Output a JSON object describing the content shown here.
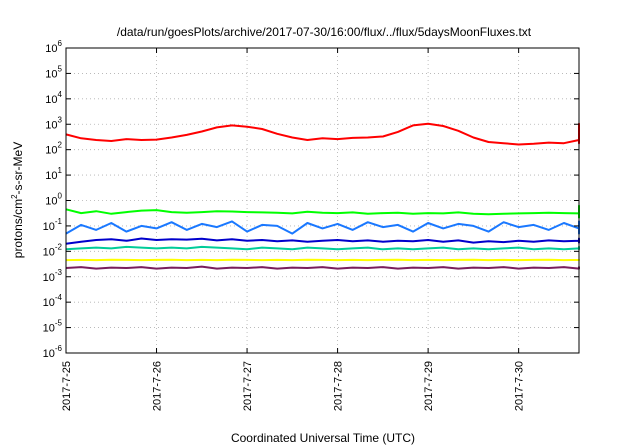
{
  "chart_data": {
    "type": "line",
    "title": "/data/run/goesPlots/archive/2017-07-30/16:00/flux/../flux/5daysMoonFluxes.txt",
    "xlabel": "Coordinated Universal Time (UTC)",
    "ylabel": {
      "base": "protons/cm",
      "superscript": "2",
      "rest": "-s-sr-MeV"
    },
    "y_scale": "log",
    "ylim": [
      1e-06,
      1000000.0
    ],
    "y_ticks": [
      {
        "exp": -6,
        "label_base": "10",
        "label_exp": "-6"
      },
      {
        "exp": -5,
        "label_base": "10",
        "label_exp": "-5"
      },
      {
        "exp": -4,
        "label_base": "10",
        "label_exp": "-4"
      },
      {
        "exp": -3,
        "label_base": "10",
        "label_exp": "-3"
      },
      {
        "exp": -2,
        "label_base": "10",
        "label_exp": "-2"
      },
      {
        "exp": -1,
        "label_base": "10",
        "label_exp": "-1"
      },
      {
        "exp": 0,
        "label_base": "10",
        "label_exp": "0"
      },
      {
        "exp": 1,
        "label_base": "10",
        "label_exp": "1"
      },
      {
        "exp": 2,
        "label_base": "10",
        "label_exp": "2"
      },
      {
        "exp": 3,
        "label_base": "10",
        "label_exp": "3"
      },
      {
        "exp": 4,
        "label_base": "10",
        "label_exp": "4"
      },
      {
        "exp": 5,
        "label_base": "10",
        "label_exp": "5"
      },
      {
        "exp": 6,
        "label_base": "10",
        "label_exp": "6"
      }
    ],
    "xlim": [
      "2017-07-25T00:00",
      "2017-07-30T16:00"
    ],
    "x_ticks": [
      {
        "date": "2017-07-25T00:00",
        "label": "2017-7-25"
      },
      {
        "date": "2017-07-26T00:00",
        "label": "2017-7-26"
      },
      {
        "date": "2017-07-27T00:00",
        "label": "2017-7-27"
      },
      {
        "date": "2017-07-28T00:00",
        "label": "2017-7-28"
      },
      {
        "date": "2017-07-29T00:00",
        "label": "2017-7-29"
      },
      {
        "date": "2017-07-30T00:00",
        "label": "2017-7-30"
      }
    ],
    "grid": true,
    "x_every_hours": 4,
    "series": [
      {
        "color": "#ff0000",
        "values": [
          400,
          280,
          240,
          220,
          260,
          240,
          250,
          300,
          380,
          520,
          750,
          900,
          800,
          650,
          420,
          300,
          240,
          280,
          260,
          290,
          300,
          330,
          500,
          900,
          1050,
          850,
          550,
          300,
          200,
          180,
          160,
          170,
          190,
          180,
          240,
          420,
          700,
          900,
          850,
          500,
          300,
          260,
          270,
          270,
          280,
          240,
          330,
          450,
          700,
          1000,
          850,
          650,
          450,
          380,
          300,
          230,
          240,
          260,
          280,
          300,
          320,
          480,
          800,
          1000,
          1050,
          700,
          350,
          200,
          180,
          210,
          250,
          240,
          260,
          230,
          200,
          180
        ]
      },
      {
        "color": "#00ff00",
        "values": [
          0.45,
          0.32,
          0.38,
          0.3,
          0.35,
          0.4,
          0.42,
          0.35,
          0.33,
          0.35,
          0.38,
          0.37,
          0.35,
          0.34,
          0.33,
          0.31,
          0.36,
          0.33,
          0.32,
          0.34,
          0.3,
          0.32,
          0.33,
          0.3,
          0.32,
          0.31,
          0.34,
          0.3,
          0.29,
          0.3,
          0.31,
          0.32,
          0.33,
          0.32,
          0.31,
          0.3,
          0.62,
          0.6,
          0.56,
          0.55,
          0.52,
          0.5,
          0.45,
          0.42,
          0.4,
          0.38,
          0.43,
          0.4,
          0.38,
          0.36,
          0.4,
          0.37,
          0.42,
          0.38,
          0.4,
          0.36,
          0.38,
          0.35,
          0.33,
          0.32,
          0.34,
          0.3,
          0.28,
          0.3,
          0.27,
          0.25,
          0.28,
          0.26,
          0.24,
          0.25,
          0.23,
          0.24,
          0.22,
          0.23,
          0.21,
          0.2
        ]
      },
      {
        "color": "#1a78ff",
        "values": [
          0.05,
          0.11,
          0.07,
          0.13,
          0.06,
          0.1,
          0.08,
          0.14,
          0.07,
          0.12,
          0.09,
          0.15,
          0.06,
          0.11,
          0.1,
          0.05,
          0.13,
          0.08,
          0.12,
          0.07,
          0.14,
          0.09,
          0.11,
          0.06,
          0.13,
          0.08,
          0.12,
          0.1,
          0.06,
          0.14,
          0.09,
          0.11,
          0.07,
          0.13,
          0.08,
          0.12,
          0.15,
          0.07,
          0.13,
          0.1,
          0.06,
          0.12,
          0.09,
          0.14,
          0.07,
          0.11,
          0.05,
          0.13,
          0.1,
          0.08,
          0.14,
          0.07,
          0.12,
          0.09,
          0.11,
          0.06,
          0.13,
          0.1,
          0.07,
          0.12,
          0.09,
          0.14,
          0.08,
          0.11,
          0.06,
          0.13,
          0.09,
          0.12,
          0.07,
          0.1,
          0.11,
          0.06,
          0.13,
          0.08,
          0.1,
          0.09
        ]
      },
      {
        "color": "#0000cc",
        "values": [
          0.02,
          0.024,
          0.028,
          0.03,
          0.026,
          0.032,
          0.028,
          0.03,
          0.029,
          0.031,
          0.027,
          0.03,
          0.026,
          0.028,
          0.025,
          0.027,
          0.024,
          0.026,
          0.028,
          0.025,
          0.027,
          0.024,
          0.026,
          0.025,
          0.028,
          0.024,
          0.027,
          0.022,
          0.025,
          0.023,
          0.026,
          0.024,
          0.027,
          0.025,
          0.026,
          0.024,
          0.03,
          0.032,
          0.028,
          0.03,
          0.027,
          0.031,
          0.026,
          0.028,
          0.025,
          0.027,
          0.024,
          0.028,
          0.026,
          0.029,
          0.025,
          0.027,
          0.024,
          0.026,
          0.023,
          0.025,
          0.027,
          0.024,
          0.026,
          0.025,
          0.027,
          0.024,
          0.026,
          0.023,
          0.025,
          0.024,
          0.026,
          0.023,
          0.025,
          0.022,
          0.024,
          0.023,
          0.025,
          0.022,
          0.024,
          0.023
        ]
      },
      {
        "color": "#00cc99",
        "values": [
          0.012,
          0.013,
          0.014,
          0.013,
          0.015,
          0.014,
          0.013,
          0.014,
          0.013,
          0.015,
          0.014,
          0.013,
          0.012,
          0.014,
          0.013,
          0.012,
          0.014,
          0.013,
          0.012,
          0.013,
          0.014,
          0.012,
          0.013,
          0.012,
          0.013,
          0.014,
          0.012,
          0.013,
          0.012,
          0.013,
          0.014,
          0.012,
          0.013,
          0.012,
          0.013,
          0.012,
          0.014,
          0.015,
          0.014,
          0.013,
          0.014,
          0.013,
          0.012,
          0.014,
          0.013,
          0.012,
          0.013,
          0.014,
          0.012,
          0.013,
          0.012,
          0.013,
          0.014,
          0.012,
          0.013,
          0.012,
          0.013,
          0.012,
          0.014,
          0.013,
          0.012,
          0.013,
          0.012,
          0.013,
          0.014,
          0.012,
          0.013,
          0.012,
          0.013,
          0.012,
          0.013,
          0.012,
          0.013,
          0.012,
          0.013,
          0.012
        ]
      },
      {
        "color": "#ffff00",
        "values": [
          0.0045,
          0.0046,
          0.0045,
          0.0047,
          0.0046,
          0.0045,
          0.0046,
          0.0047,
          0.0045,
          0.0046,
          0.0045,
          0.0047,
          0.0046,
          0.0045,
          0.0046,
          0.0045,
          0.0047,
          0.0046,
          0.0045,
          0.0046,
          0.0045,
          0.0046,
          0.0047,
          0.0045,
          0.0046,
          0.0045,
          0.0046,
          0.0047,
          0.0045,
          0.0046,
          0.0045,
          0.0046,
          0.0047,
          0.0045,
          0.0046,
          0.0045,
          0.0046,
          0.0047,
          0.0045,
          0.0046,
          0.0045,
          0.0046,
          0.0047,
          0.0045,
          0.0046,
          0.0045,
          0.0046,
          0.0047,
          0.0045,
          0.0046,
          0.0045,
          0.0046,
          0.0047,
          0.0045,
          0.0046,
          0.0045,
          0.0046,
          0.0047,
          0.0045,
          0.0046,
          0.0045,
          0.0046,
          0.0047,
          0.0045,
          0.0046,
          0.0045,
          0.0046,
          0.0047,
          0.0045,
          0.0046,
          0.0045,
          0.0046,
          0.0047,
          0.0045,
          0.0046,
          0.0045
        ]
      },
      {
        "color": "#7a1f5c",
        "values": [
          0.0022,
          0.0024,
          0.0021,
          0.0023,
          0.0022,
          0.0024,
          0.0021,
          0.0023,
          0.0022,
          0.0025,
          0.0021,
          0.0023,
          0.0022,
          0.0024,
          0.0021,
          0.0023,
          0.0022,
          0.0024,
          0.0021,
          0.0023,
          0.0022,
          0.0024,
          0.0021,
          0.0023,
          0.0022,
          0.0024,
          0.0021,
          0.0023,
          0.0022,
          0.0024,
          0.0021,
          0.0023,
          0.0022,
          0.0024,
          0.0021,
          0.0023,
          0.0022,
          0.0024,
          0.0021,
          0.0023,
          0.0022,
          0.0024,
          0.0021,
          0.0023,
          0.0022,
          0.0024,
          0.0021,
          0.0023,
          0.0022,
          0.0024,
          0.0021,
          0.0023,
          0.0022,
          0.0024,
          0.0021,
          0.0023,
          0.0022,
          0.0024,
          0.0021,
          0.0023,
          0.0022,
          0.0024,
          0.0021,
          0.0023,
          0.0022,
          0.0024,
          0.0021,
          0.0023,
          0.0022,
          0.0024,
          0.0021,
          0.0023,
          0.0022,
          0.0024,
          0.0021,
          0.0023
        ]
      }
    ]
  }
}
